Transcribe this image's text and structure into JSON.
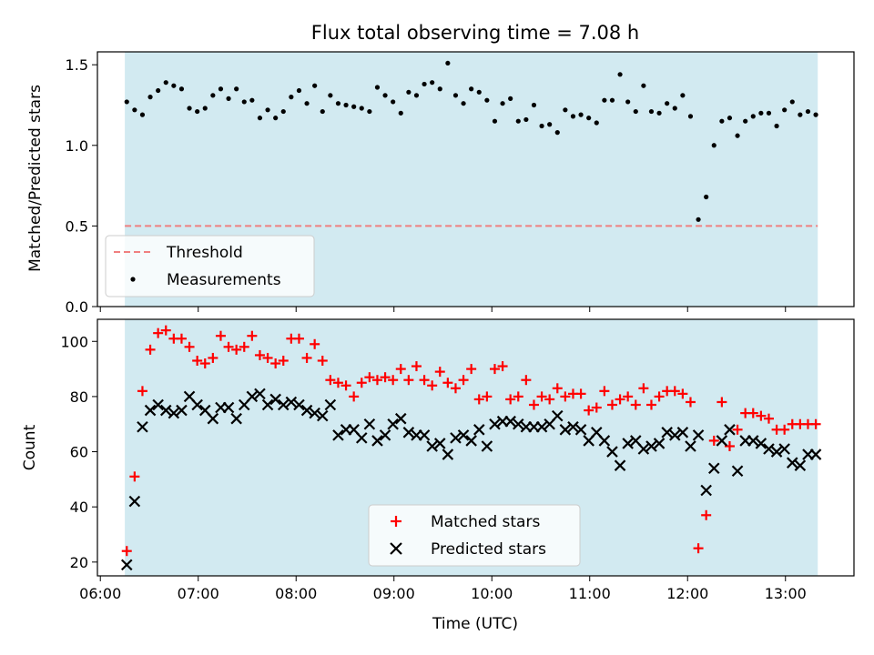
{
  "chart_data": [
    {
      "type": "scatter",
      "title": "Flux total observing time = 7.08 h",
      "xlabel": "",
      "ylabel": "Matched/Predicted stars",
      "x_unit": "hours (UTC)",
      "xlim": [
        5.97,
        13.7
      ],
      "ylim": [
        0.0,
        1.58
      ],
      "yticks": [
        0.0,
        0.5,
        1.0,
        1.5
      ],
      "ytick_labels": [
        "0.0",
        "0.5",
        "1.0",
        "1.5"
      ],
      "grid": false,
      "legend_position": "lower-left",
      "shaded_span": [
        6.25,
        13.33
      ],
      "shaded_color": "#add8e6",
      "threshold": {
        "name": "Threshold",
        "value": 0.5,
        "color": "#f08080",
        "style": "dashed"
      },
      "series": [
        {
          "name": "Measurements",
          "color": "#000000",
          "marker": "dot",
          "x": [
            6.27,
            6.35,
            6.43,
            6.51,
            6.59,
            6.67,
            6.75,
            6.83,
            6.91,
            6.99,
            7.07,
            7.15,
            7.23,
            7.31,
            7.39,
            7.47,
            7.55,
            7.63,
            7.71,
            7.79,
            7.87,
            7.95,
            8.03,
            8.11,
            8.19,
            8.27,
            8.35,
            8.43,
            8.51,
            8.59,
            8.67,
            8.75,
            8.83,
            8.91,
            8.99,
            9.07,
            9.15,
            9.23,
            9.31,
            9.39,
            9.47,
            9.55,
            9.63,
            9.71,
            9.79,
            9.87,
            9.95,
            10.03,
            10.11,
            10.19,
            10.27,
            10.35,
            10.43,
            10.51,
            10.59,
            10.67,
            10.75,
            10.83,
            10.91,
            10.99,
            11.07,
            11.15,
            11.23,
            11.31,
            11.39,
            11.47,
            11.55,
            11.63,
            11.71,
            11.79,
            11.87,
            11.95,
            12.03,
            12.11,
            12.19,
            12.27,
            12.35,
            12.43,
            12.51,
            12.59,
            12.67,
            12.75,
            12.83,
            12.91,
            12.99,
            13.07,
            13.15,
            13.23,
            13.31
          ],
          "y": [
            1.27,
            1.22,
            1.19,
            1.3,
            1.34,
            1.39,
            1.37,
            1.35,
            1.23,
            1.21,
            1.23,
            1.31,
            1.35,
            1.29,
            1.35,
            1.27,
            1.28,
            1.17,
            1.22,
            1.17,
            1.21,
            1.3,
            1.34,
            1.26,
            1.37,
            1.21,
            1.31,
            1.26,
            1.25,
            1.24,
            1.23,
            1.21,
            1.36,
            1.31,
            1.27,
            1.2,
            1.33,
            1.31,
            1.38,
            1.39,
            1.35,
            1.51,
            1.31,
            1.26,
            1.35,
            1.33,
            1.28,
            1.15,
            1.26,
            1.29,
            1.15,
            1.16,
            1.25,
            1.12,
            1.13,
            1.08,
            1.22,
            1.18,
            1.19,
            1.17,
            1.14,
            1.28,
            1.28,
            1.44,
            1.27,
            1.21,
            1.37,
            1.21,
            1.2,
            1.26,
            1.23,
            1.31,
            1.18,
            0.54,
            0.68,
            1.0,
            1.15,
            1.17,
            1.06,
            1.15,
            1.18,
            1.2,
            1.2,
            1.12,
            1.22,
            1.27,
            1.19,
            1.21,
            1.19
          ]
        }
      ]
    },
    {
      "type": "scatter",
      "title": "",
      "xlabel": "Time (UTC)",
      "ylabel": "Count",
      "x_unit": "hours (UTC)",
      "xlim": [
        5.97,
        13.7
      ],
      "ylim": [
        15,
        108
      ],
      "xticks": [
        6,
        7,
        8,
        9,
        10,
        11,
        12,
        13
      ],
      "xtick_labels": [
        "06:00",
        "07:00",
        "08:00",
        "09:00",
        "10:00",
        "11:00",
        "12:00",
        "13:00"
      ],
      "yticks": [
        20,
        40,
        60,
        80,
        100
      ],
      "ytick_labels": [
        "20",
        "40",
        "60",
        "80",
        "100"
      ],
      "grid": false,
      "legend_position": "bottom-center",
      "shaded_span": [
        6.25,
        13.33
      ],
      "shaded_color": "#add8e6",
      "series": [
        {
          "name": "Matched stars",
          "color": "#ff0000",
          "marker": "plus",
          "x": [
            6.27,
            6.35,
            6.43,
            6.51,
            6.59,
            6.67,
            6.75,
            6.83,
            6.91,
            6.99,
            7.07,
            7.15,
            7.23,
            7.31,
            7.39,
            7.47,
            7.55,
            7.63,
            7.71,
            7.79,
            7.87,
            7.95,
            8.03,
            8.11,
            8.19,
            8.27,
            8.35,
            8.43,
            8.51,
            8.59,
            8.67,
            8.75,
            8.83,
            8.91,
            8.99,
            9.07,
            9.15,
            9.23,
            9.31,
            9.39,
            9.47,
            9.55,
            9.63,
            9.71,
            9.79,
            9.87,
            9.95,
            10.03,
            10.11,
            10.19,
            10.27,
            10.35,
            10.43,
            10.51,
            10.59,
            10.67,
            10.75,
            10.83,
            10.91,
            10.99,
            11.07,
            11.15,
            11.23,
            11.31,
            11.39,
            11.47,
            11.55,
            11.63,
            11.71,
            11.79,
            11.87,
            11.95,
            12.03,
            12.11,
            12.19,
            12.27,
            12.35,
            12.43,
            12.51,
            12.59,
            12.67,
            12.75,
            12.83,
            12.91,
            12.99,
            13.07,
            13.15,
            13.23,
            13.31
          ],
          "y": [
            24,
            51,
            82,
            97,
            103,
            104,
            101,
            101,
            98,
            93,
            92,
            94,
            102,
            98,
            97,
            98,
            102,
            95,
            94,
            92,
            93,
            101,
            101,
            94,
            99,
            93,
            86,
            85,
            84,
            80,
            85,
            87,
            86,
            87,
            86,
            90,
            86,
            91,
            86,
            84,
            89,
            85,
            83,
            86,
            90,
            79,
            80,
            90,
            91,
            79,
            80,
            86,
            77,
            80,
            79,
            83,
            80,
            81,
            81,
            75,
            76,
            82,
            77,
            79,
            80,
            77,
            83,
            77,
            80,
            82,
            82,
            81,
            78,
            25,
            37,
            64,
            78,
            62,
            68,
            74,
            74,
            73,
            72,
            68,
            68,
            70,
            70,
            70,
            70
          ]
        },
        {
          "name": "Predicted stars",
          "color": "#000000",
          "marker": "x",
          "x": [
            6.27,
            6.35,
            6.43,
            6.51,
            6.59,
            6.67,
            6.75,
            6.83,
            6.91,
            6.99,
            7.07,
            7.15,
            7.23,
            7.31,
            7.39,
            7.47,
            7.55,
            7.63,
            7.71,
            7.79,
            7.87,
            7.95,
            8.03,
            8.11,
            8.19,
            8.27,
            8.35,
            8.43,
            8.51,
            8.59,
            8.67,
            8.75,
            8.83,
            8.91,
            8.99,
            9.07,
            9.15,
            9.23,
            9.31,
            9.39,
            9.47,
            9.55,
            9.63,
            9.71,
            9.79,
            9.87,
            9.95,
            10.03,
            10.11,
            10.19,
            10.27,
            10.35,
            10.43,
            10.51,
            10.59,
            10.67,
            10.75,
            10.83,
            10.91,
            10.99,
            11.07,
            11.15,
            11.23,
            11.31,
            11.39,
            11.47,
            11.55,
            11.63,
            11.71,
            11.79,
            11.87,
            11.95,
            12.03,
            12.11,
            12.19,
            12.27,
            12.35,
            12.43,
            12.51,
            12.59,
            12.67,
            12.75,
            12.83,
            12.91,
            12.99,
            13.07,
            13.15,
            13.23,
            13.31
          ],
          "y": [
            19,
            42,
            69,
            75,
            77,
            75,
            74,
            75,
            80,
            77,
            75,
            72,
            76,
            76,
            72,
            77,
            80,
            81,
            77,
            79,
            77,
            78,
            77,
            75,
            74,
            73,
            77,
            66,
            68,
            68,
            65,
            70,
            64,
            66,
            70,
            72,
            67,
            66,
            66,
            62,
            63,
            59,
            65,
            66,
            64,
            68,
            62,
            70,
            71,
            71,
            70,
            69,
            69,
            69,
            70,
            73,
            68,
            69,
            68,
            64,
            67,
            64,
            60,
            55,
            63,
            64,
            61,
            62,
            63,
            67,
            66,
            67,
            62,
            66,
            46,
            54,
            64,
            68,
            53,
            64,
            64,
            63,
            61,
            60,
            61,
            56,
            55,
            59,
            59
          ]
        }
      ]
    }
  ]
}
